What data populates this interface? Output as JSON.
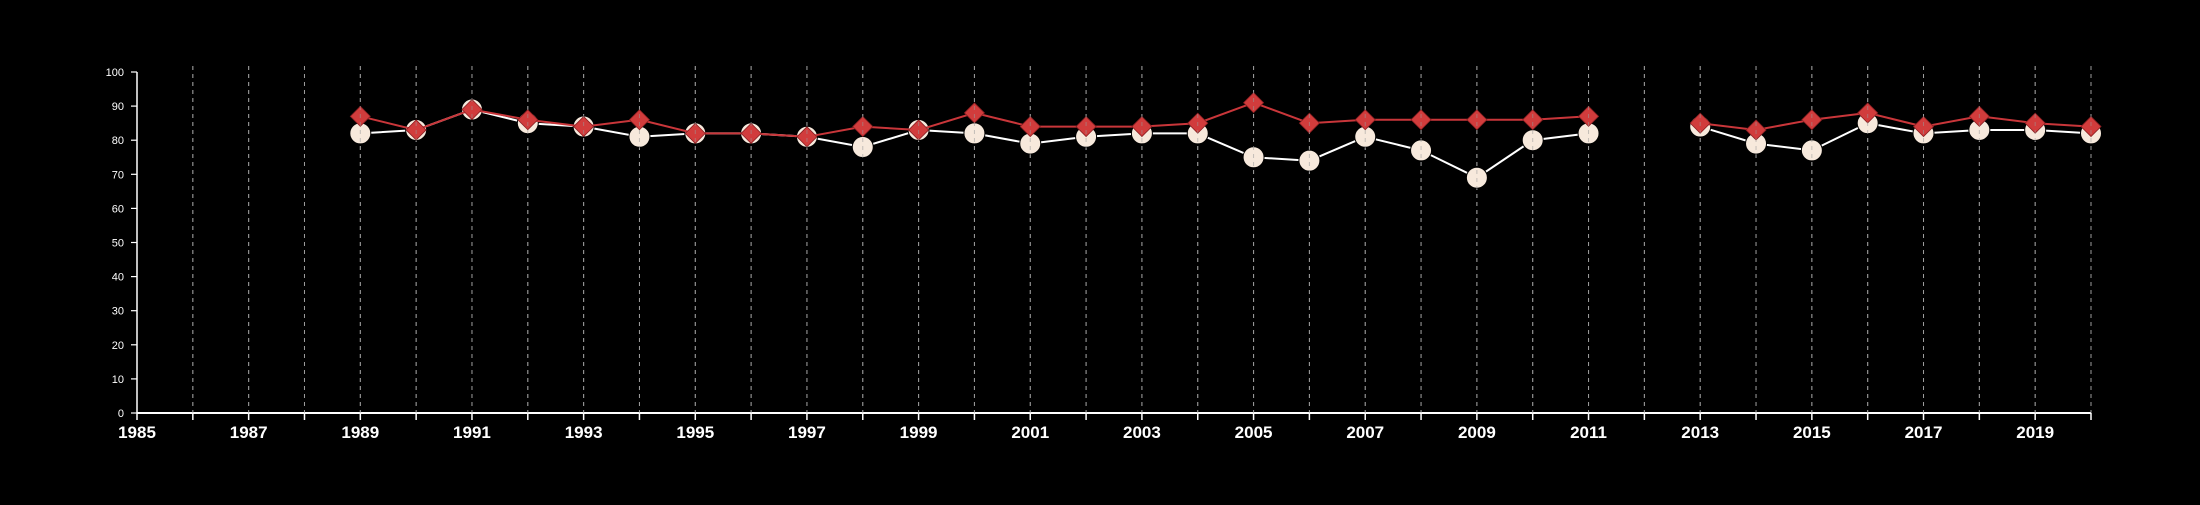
{
  "chart_data": {
    "type": "line",
    "title": "",
    "xlabel": "",
    "ylabel": "",
    "xlim": [
      1985,
      2020
    ],
    "ylim": [
      0,
      100
    ],
    "y_ticks": [
      "0",
      "10",
      "20",
      "30",
      "40",
      "50",
      "60",
      "70",
      "80",
      "90",
      "100"
    ],
    "x_ticks": [
      "1985",
      "1987",
      "1989",
      "1991",
      "1993",
      "1995",
      "1997",
      "1999",
      "2001",
      "2003",
      "2005",
      "2007",
      "2009",
      "2011",
      "2013",
      "2015",
      "2017",
      "2019"
    ],
    "grid": "vertical dashed lines at each year",
    "legend": "none",
    "series": [
      {
        "marker": "circle",
        "color": "#f7e9dc",
        "line_color": "#ffffff",
        "x": [
          1989,
          1990,
          1991,
          1992,
          1993,
          1994,
          1995,
          1996,
          1997,
          1998,
          1999,
          2000,
          2001,
          2002,
          2003,
          2004,
          2005,
          2006,
          2007,
          2008,
          2009,
          2010,
          2011,
          2013,
          2014,
          2015,
          2016,
          2017,
          2018,
          2019,
          2020
        ],
        "values": [
          82,
          83,
          89,
          85,
          84,
          81,
          82,
          82,
          81,
          78,
          83,
          82,
          79,
          81,
          82,
          82,
          75,
          74,
          81,
          77,
          69,
          80,
          82,
          84,
          79,
          77,
          85,
          82,
          83,
          83,
          82
        ]
      },
      {
        "marker": "diamond",
        "color": "#d13c3c",
        "line_color": "#c9363a",
        "x": [
          1989,
          1990,
          1991,
          1992,
          1993,
          1994,
          1995,
          1996,
          1997,
          1998,
          1999,
          2000,
          2001,
          2002,
          2003,
          2004,
          2005,
          2006,
          2007,
          2008,
          2009,
          2010,
          2011,
          2013,
          2014,
          2015,
          2016,
          2017,
          2018,
          2019,
          2020
        ],
        "values": [
          87,
          83,
          89,
          86,
          84,
          86,
          82,
          82,
          81,
          84,
          83,
          88,
          84,
          84,
          84,
          85,
          91,
          85,
          86,
          86,
          86,
          86,
          87,
          85,
          83,
          86,
          88,
          84,
          87,
          85,
          84
        ]
      }
    ]
  }
}
